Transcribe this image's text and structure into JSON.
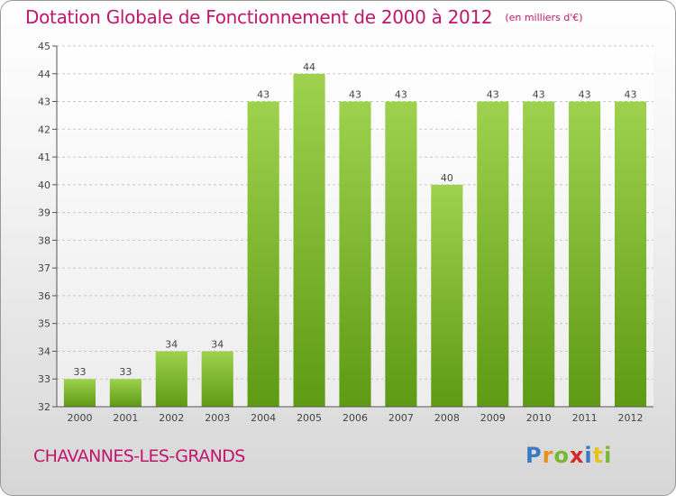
{
  "title": "Dotation Globale de Fonctionnement de 2000 à 2012",
  "unit_note": "(en milliers d'€)",
  "commune": "CHAVANNES-LES-GRANDS",
  "logo": {
    "letters": [
      "P",
      "r",
      "o",
      "x",
      "i",
      "t",
      "i"
    ],
    "colors": [
      "#3a78c4",
      "#e8901c",
      "#7ab82e",
      "#d42a2a",
      "#3a78c4",
      "#e8c21c",
      "#7ab82e"
    ]
  },
  "colors": {
    "accent": "#c0176c",
    "bar_light": "#9ed24e",
    "bar_dark": "#5e9a14"
  },
  "chart_data": {
    "type": "bar",
    "categories": [
      "2000",
      "2001",
      "2002",
      "2003",
      "2004",
      "2005",
      "2006",
      "2007",
      "2008",
      "2009",
      "2010",
      "2011",
      "2012"
    ],
    "values": [
      33,
      33,
      34,
      34,
      43,
      44,
      43,
      43,
      40,
      43,
      43,
      43,
      43
    ],
    "title": "Dotation Globale de Fonctionnement de 2000 à 2012",
    "xlabel": "",
    "ylabel": "",
    "ylim": [
      32,
      45
    ],
    "yticks": [
      32,
      33,
      34,
      35,
      36,
      37,
      38,
      39,
      40,
      41,
      42,
      43,
      44,
      45
    ],
    "grid": "horizontal-dashed",
    "legend": "none"
  }
}
